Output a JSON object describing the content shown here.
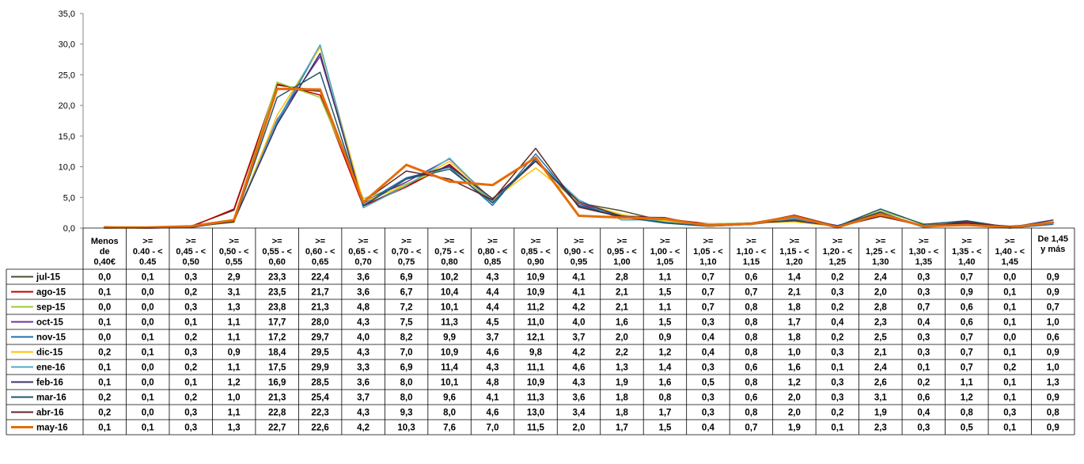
{
  "chart_data": {
    "type": "line",
    "ylim": [
      0,
      35
    ],
    "yticks": [
      "0,0",
      "5,0",
      "10,0",
      "15,0",
      "20,0",
      "25,0",
      "30,0",
      "35,0"
    ],
    "grid": false,
    "legend": "table-left",
    "categories": [
      [
        "Menos",
        "de",
        "0,40€"
      ],
      [
        ">=",
        "0.40 - <",
        "0.45"
      ],
      [
        ">=",
        "0,45 - <",
        "0,50"
      ],
      [
        ">=",
        "0,50 - <",
        "0,55"
      ],
      [
        ">=",
        "0,55 - <",
        "0,60"
      ],
      [
        ">=",
        "0,60 - <",
        "0,65"
      ],
      [
        ">=",
        "0,65 - <",
        "0,70"
      ],
      [
        ">=",
        "0,70 - <",
        "0,75"
      ],
      [
        ">=",
        "0,75 - <",
        "0,80"
      ],
      [
        ">=",
        "0,80 - <",
        "0,85"
      ],
      [
        ">=",
        "0,85 - <",
        "0,90"
      ],
      [
        ">=",
        "0,90 - <",
        "0,95"
      ],
      [
        ">=",
        "0,95 - <",
        "1,00"
      ],
      [
        ">=",
        "1,00 - <",
        "1,05"
      ],
      [
        ">=",
        "1,05 - <",
        "1,10"
      ],
      [
        ">=",
        "1,10 - <",
        "1,15"
      ],
      [
        ">=",
        "1,15 - <",
        "1,20"
      ],
      [
        ">=",
        "1,20 - <",
        "1,25"
      ],
      [
        ">=",
        "1,25 - <",
        "1,30"
      ],
      [
        ">=",
        "1,30 - <",
        "1,35"
      ],
      [
        ">=",
        "1,35 - <",
        "1,40"
      ],
      [
        ">=",
        "1,40 - <",
        "1,45"
      ],
      [
        "De 1,45",
        "y más"
      ]
    ],
    "series": [
      {
        "name": "jul-15",
        "color": "#4d4d33",
        "width": 1.5,
        "values": [
          "0,0",
          "0,1",
          "0,3",
          "2,9",
          "23,3",
          "22,4",
          "3,6",
          "6,9",
          "10,2",
          "4,3",
          "10,9",
          "4,1",
          "2,8",
          "1,1",
          "0,7",
          "0,6",
          "1,4",
          "0,2",
          "2,4",
          "0,3",
          "0,7",
          "0,0",
          "0,9"
        ]
      },
      {
        "name": "ago-15",
        "color": "#c00000",
        "width": 1.5,
        "values": [
          "0,1",
          "0,0",
          "0,2",
          "3,1",
          "23,5",
          "21,7",
          "3,6",
          "6,7",
          "10,4",
          "4,4",
          "10,9",
          "4,1",
          "2,1",
          "1,5",
          "0,7",
          "0,7",
          "2,1",
          "0,3",
          "2,0",
          "0,3",
          "0,9",
          "0,1",
          "0,9"
        ]
      },
      {
        "name": "sep-15",
        "color": "#9acd32",
        "width": 1.5,
        "values": [
          "0,0",
          "0,0",
          "0,3",
          "1,3",
          "23,8",
          "21,3",
          "4,8",
          "7,2",
          "10,1",
          "4,4",
          "11,2",
          "4,2",
          "2,1",
          "1,1",
          "0,7",
          "0,8",
          "1,8",
          "0,2",
          "2,8",
          "0,7",
          "0,6",
          "0,1",
          "0,7"
        ]
      },
      {
        "name": "oct-15",
        "color": "#7030a0",
        "width": 1.5,
        "values": [
          "0,1",
          "0,0",
          "0,1",
          "1,1",
          "17,7",
          "28,0",
          "4,3",
          "7,5",
          "11,3",
          "4,5",
          "11,0",
          "4,0",
          "1,6",
          "1,5",
          "0,3",
          "0,8",
          "1,7",
          "0,4",
          "2,3",
          "0,4",
          "0,6",
          "0,1",
          "1,0"
        ]
      },
      {
        "name": "nov-15",
        "color": "#1f6fb0",
        "width": 1.5,
        "values": [
          "0,0",
          "0,1",
          "0,2",
          "1,1",
          "17,2",
          "29,7",
          "4,0",
          "8,2",
          "9,9",
          "3,7",
          "12,1",
          "3,7",
          "2,0",
          "0,9",
          "0,4",
          "0,8",
          "1,8",
          "0,2",
          "2,5",
          "0,3",
          "0,7",
          "0,0",
          "0,6"
        ]
      },
      {
        "name": "dic-15",
        "color": "#ffc000",
        "width": 1.5,
        "values": [
          "0,2",
          "0,1",
          "0,3",
          "0,9",
          "18,4",
          "29,5",
          "4,3",
          "7,0",
          "10,9",
          "4,6",
          "9,8",
          "4,2",
          "2,2",
          "1,2",
          "0,4",
          "0,8",
          "1,0",
          "0,3",
          "2,1",
          "0,3",
          "0,7",
          "0,1",
          "0,9"
        ]
      },
      {
        "name": "ene-16",
        "color": "#4bacc6",
        "width": 1.5,
        "values": [
          "0,1",
          "0,0",
          "0,2",
          "1,1",
          "17,5",
          "29,9",
          "3,3",
          "6,9",
          "11,4",
          "4,3",
          "11,1",
          "4,6",
          "1,3",
          "1,4",
          "0,3",
          "0,6",
          "1,6",
          "0,1",
          "2,4",
          "0,1",
          "0,7",
          "0,2",
          "1,0"
        ]
      },
      {
        "name": "feb-16",
        "color": "#3f3163",
        "width": 1.5,
        "values": [
          "0,1",
          "0,0",
          "0,1",
          "1,2",
          "16,9",
          "28,5",
          "3,6",
          "8,0",
          "10,1",
          "4,8",
          "10,9",
          "4,3",
          "1,9",
          "1,6",
          "0,5",
          "0,8",
          "1,2",
          "0,3",
          "2,6",
          "0,2",
          "1,1",
          "0,1",
          "1,3"
        ]
      },
      {
        "name": "mar-16",
        "color": "#215868",
        "width": 1.5,
        "values": [
          "0,2",
          "0,1",
          "0,2",
          "1,0",
          "21,3",
          "25,4",
          "3,7",
          "8,0",
          "9,6",
          "4,1",
          "11,3",
          "3,6",
          "1,8",
          "0,8",
          "0,3",
          "0,6",
          "2,0",
          "0,3",
          "3,1",
          "0,6",
          "1,2",
          "0,1",
          "0,9"
        ]
      },
      {
        "name": "abr-16",
        "color": "#632523",
        "width": 1.5,
        "values": [
          "0,2",
          "0,0",
          "0,3",
          "1,1",
          "22,8",
          "22,3",
          "4,3",
          "9,3",
          "8,0",
          "4,6",
          "13,0",
          "3,4",
          "1,8",
          "1,7",
          "0,3",
          "0,8",
          "2,0",
          "0,2",
          "1,9",
          "0,4",
          "0,8",
          "0,3",
          "0,8"
        ]
      },
      {
        "name": "may-16",
        "color": "#e46c0a",
        "width": 3,
        "values": [
          "0,1",
          "0,1",
          "0,3",
          "1,3",
          "22,7",
          "22,6",
          "4,2",
          "10,3",
          "7,6",
          "7,0",
          "11,5",
          "2,0",
          "1,7",
          "1,5",
          "0,4",
          "0,7",
          "1,9",
          "0,1",
          "2,3",
          "0,3",
          "0,5",
          "0,1",
          "0,9"
        ]
      }
    ]
  }
}
